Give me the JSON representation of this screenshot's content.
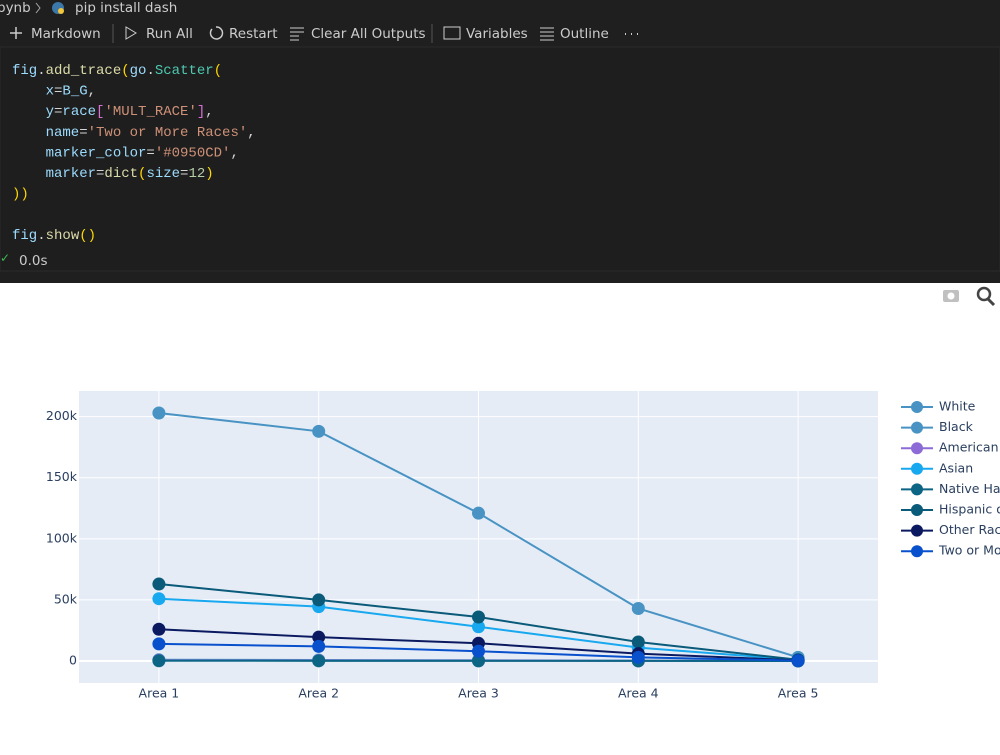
{
  "breadcrumb": {
    "folder": "pynb",
    "file": "pip install dash"
  },
  "toolbar": [
    "Markdown",
    "Run All",
    "Restart",
    "Clear All Outputs",
    "Variables",
    "Outline"
  ],
  "code": [
    [
      "fig",
      ".",
      "add_trace",
      "(",
      "go",
      ".",
      "Scatter",
      "("
    ],
    [
      "    x",
      "=",
      "B_G",
      ","
    ],
    [
      "    y",
      "=",
      "race",
      "[",
      "'MULT_RACE'",
      "]",
      ","
    ],
    [
      "    name",
      "=",
      "'Two or More Races'",
      ","
    ],
    [
      "    marker_color",
      "=",
      "'#0950CD'",
      ","
    ],
    [
      "    marker",
      "=",
      "dict",
      "(",
      "size",
      "=",
      "12",
      ")"
    ],
    [
      "))"
    ],
    [
      "fig",
      ".",
      "show",
      "()"
    ]
  ],
  "status": {
    "time": "0.0s"
  },
  "chart_data": {
    "type": "line",
    "categories": [
      "Area 1",
      "Area 2",
      "Area 3",
      "Area 4",
      "Area 5"
    ],
    "ylim": [
      -18000,
      221000
    ],
    "yticks": [
      0,
      {
        "value": 50000,
        "label": "50k"
      },
      {
        "value": 100000,
        "label": "100k"
      },
      {
        "value": 150000,
        "label": "150k"
      },
      {
        "value": 200000,
        "label": "200k"
      }
    ],
    "grid": true,
    "legend": "right",
    "series": [
      {
        "name": "White",
        "color": "#4893c3",
        "values": [
          203000,
          188000,
          121000,
          43000,
          3000
        ]
      },
      {
        "name": "Black",
        "color": "#4893c3",
        "values": [
          1000,
          800,
          600,
          300,
          100
        ]
      },
      {
        "name": "American",
        "color": "#8c6bd6",
        "values": [
          500,
          400,
          300,
          150,
          50
        ]
      },
      {
        "name": "Asian",
        "color": "#17a8ef",
        "values": [
          51000,
          44500,
          28000,
          11000,
          1000
        ]
      },
      {
        "name": "Native Ha",
        "color": "#0c6585",
        "values": [
          200,
          150,
          120,
          80,
          30
        ]
      },
      {
        "name": "Hispanic o",
        "color": "#0a5a7a",
        "values": [
          63000,
          50000,
          36000,
          15600,
          1000
        ]
      },
      {
        "name": "Other Rac",
        "color": "#0b1a60",
        "values": [
          26000,
          19500,
          14500,
          6000,
          500
        ]
      },
      {
        "name": "Two or Mo",
        "color": "#0950CD",
        "values": [
          14000,
          12000,
          8000,
          3000,
          300
        ]
      }
    ]
  }
}
